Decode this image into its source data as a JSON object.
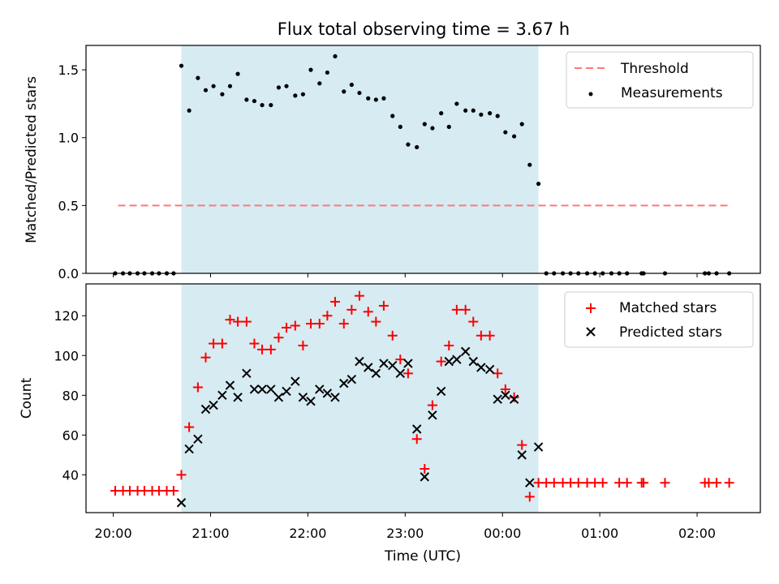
{
  "chart_data": [
    {
      "type": "scatter",
      "title": "Flux total observing time = 3.67 h",
      "xlabel": "",
      "ylabel": "Matched/Predicted stars",
      "ylim": [
        0,
        1.68
      ],
      "yticks": [
        "0.0",
        "0.5",
        "1.0",
        "1.5"
      ],
      "xlim": [
        -0.28,
        6.65
      ],
      "shaded_region": {
        "x_start": 0.7,
        "x_end": 4.37,
        "color": "#add8e6"
      },
      "threshold": {
        "name": "Threshold",
        "value": 0.5,
        "x_start": 0.05,
        "x_end": 6.35,
        "color": "#ff6666"
      },
      "legend": {
        "position": "top-right",
        "entries": [
          "Threshold",
          "Measurements"
        ]
      },
      "series": [
        {
          "name": "Measurements",
          "color": "#000000",
          "points": [
            [
              0.02,
              0
            ],
            [
              0.1,
              0
            ],
            [
              0.17,
              0
            ],
            [
              0.25,
              0
            ],
            [
              0.32,
              0
            ],
            [
              0.4,
              0
            ],
            [
              0.47,
              0
            ],
            [
              0.55,
              0
            ],
            [
              0.62,
              0
            ],
            [
              0.7,
              1.53
            ],
            [
              0.78,
              1.2
            ],
            [
              0.87,
              1.44
            ],
            [
              0.95,
              1.35
            ],
            [
              1.03,
              1.38
            ],
            [
              1.12,
              1.32
            ],
            [
              1.2,
              1.38
            ],
            [
              1.28,
              1.47
            ],
            [
              1.37,
              1.28
            ],
            [
              1.45,
              1.27
            ],
            [
              1.53,
              1.24
            ],
            [
              1.62,
              1.24
            ],
            [
              1.7,
              1.37
            ],
            [
              1.78,
              1.38
            ],
            [
              1.87,
              1.31
            ],
            [
              1.95,
              1.32
            ],
            [
              2.03,
              1.5
            ],
            [
              2.12,
              1.4
            ],
            [
              2.2,
              1.48
            ],
            [
              2.28,
              1.6
            ],
            [
              2.37,
              1.34
            ],
            [
              2.45,
              1.39
            ],
            [
              2.53,
              1.33
            ],
            [
              2.62,
              1.29
            ],
            [
              2.7,
              1.28
            ],
            [
              2.78,
              1.29
            ],
            [
              2.87,
              1.16
            ],
            [
              2.95,
              1.08
            ],
            [
              3.03,
              0.95
            ],
            [
              3.12,
              0.93
            ],
            [
              3.2,
              1.1
            ],
            [
              3.28,
              1.07
            ],
            [
              3.37,
              1.18
            ],
            [
              3.45,
              1.08
            ],
            [
              3.53,
              1.25
            ],
            [
              3.62,
              1.2
            ],
            [
              3.7,
              1.2
            ],
            [
              3.78,
              1.17
            ],
            [
              3.87,
              1.18
            ],
            [
              3.95,
              1.16
            ],
            [
              4.03,
              1.04
            ],
            [
              4.12,
              1.01
            ],
            [
              4.2,
              1.1
            ],
            [
              4.28,
              0.8
            ],
            [
              4.37,
              0.66
            ],
            [
              4.45,
              0
            ],
            [
              4.53,
              0
            ],
            [
              4.62,
              0
            ],
            [
              4.7,
              0
            ],
            [
              4.78,
              0
            ],
            [
              4.87,
              0
            ],
            [
              4.95,
              0
            ],
            [
              5.03,
              0
            ],
            [
              5.12,
              0
            ],
            [
              5.2,
              0
            ],
            [
              5.28,
              0
            ],
            [
              5.43,
              0
            ],
            [
              5.45,
              0
            ],
            [
              5.67,
              0
            ],
            [
              6.08,
              0
            ],
            [
              6.12,
              0
            ],
            [
              6.2,
              0
            ],
            [
              6.33,
              0
            ]
          ]
        }
      ]
    },
    {
      "type": "scatter",
      "title": "",
      "xlabel": "Time (UTC)",
      "ylabel": "Count",
      "ylim": [
        21,
        136
      ],
      "yticks": [
        "40",
        "60",
        "80",
        "100",
        "120"
      ],
      "xlim": [
        -0.28,
        6.65
      ],
      "xticks": [
        "20:00",
        "21:00",
        "22:00",
        "23:00",
        "00:00",
        "01:00",
        "02:00"
      ],
      "shaded_region": {
        "x_start": 0.7,
        "x_end": 4.37,
        "color": "#add8e6"
      },
      "legend": {
        "position": "top-right",
        "entries": [
          "Matched stars",
          "Predicted stars"
        ]
      },
      "series": [
        {
          "name": "Matched stars",
          "marker": "plus",
          "color": "#ff0000",
          "points": [
            [
              0.02,
              32
            ],
            [
              0.1,
              32
            ],
            [
              0.17,
              32
            ],
            [
              0.25,
              32
            ],
            [
              0.32,
              32
            ],
            [
              0.4,
              32
            ],
            [
              0.47,
              32
            ],
            [
              0.55,
              32
            ],
            [
              0.62,
              32
            ],
            [
              0.7,
              40
            ],
            [
              0.78,
              64
            ],
            [
              0.87,
              84
            ],
            [
              0.95,
              99
            ],
            [
              1.03,
              106
            ],
            [
              1.12,
              106
            ],
            [
              1.2,
              118
            ],
            [
              1.28,
              117
            ],
            [
              1.37,
              117
            ],
            [
              1.45,
              106
            ],
            [
              1.53,
              103
            ],
            [
              1.62,
              103
            ],
            [
              1.7,
              109
            ],
            [
              1.78,
              114
            ],
            [
              1.87,
              115
            ],
            [
              1.95,
              105
            ],
            [
              2.03,
              116
            ],
            [
              2.12,
              116
            ],
            [
              2.2,
              120
            ],
            [
              2.28,
              127
            ],
            [
              2.37,
              116
            ],
            [
              2.45,
              123
            ],
            [
              2.53,
              130
            ],
            [
              2.62,
              122
            ],
            [
              2.7,
              117
            ],
            [
              2.78,
              125
            ],
            [
              2.87,
              110
            ],
            [
              2.95,
              98
            ],
            [
              3.03,
              91
            ],
            [
              3.12,
              58
            ],
            [
              3.2,
              43
            ],
            [
              3.28,
              75
            ],
            [
              3.37,
              97
            ],
            [
              3.45,
              105
            ],
            [
              3.53,
              123
            ],
            [
              3.62,
              123
            ],
            [
              3.7,
              117
            ],
            [
              3.78,
              110
            ],
            [
              3.87,
              110
            ],
            [
              3.95,
              91
            ],
            [
              4.03,
              83
            ],
            [
              4.12,
              79
            ],
            [
              4.2,
              55
            ],
            [
              4.28,
              29
            ],
            [
              4.37,
              36
            ],
            [
              4.45,
              36
            ],
            [
              4.53,
              36
            ],
            [
              4.62,
              36
            ],
            [
              4.7,
              36
            ],
            [
              4.78,
              36
            ],
            [
              4.87,
              36
            ],
            [
              4.95,
              36
            ],
            [
              5.03,
              36
            ],
            [
              5.2,
              36
            ],
            [
              5.28,
              36
            ],
            [
              5.43,
              36
            ],
            [
              5.45,
              36
            ],
            [
              5.67,
              36
            ],
            [
              6.08,
              36
            ],
            [
              6.12,
              36
            ],
            [
              6.2,
              36
            ],
            [
              6.33,
              36
            ]
          ]
        },
        {
          "name": "Predicted stars",
          "marker": "x",
          "color": "#000000",
          "points": [
            [
              0.7,
              26
            ],
            [
              0.78,
              53
            ],
            [
              0.87,
              58
            ],
            [
              0.95,
              73
            ],
            [
              1.03,
              75
            ],
            [
              1.12,
              80
            ],
            [
              1.2,
              85
            ],
            [
              1.28,
              79
            ],
            [
              1.37,
              91
            ],
            [
              1.45,
              83
            ],
            [
              1.53,
              83
            ],
            [
              1.62,
              83
            ],
            [
              1.7,
              79
            ],
            [
              1.78,
              82
            ],
            [
              1.87,
              87
            ],
            [
              1.95,
              79
            ],
            [
              2.03,
              77
            ],
            [
              2.12,
              83
            ],
            [
              2.2,
              81
            ],
            [
              2.28,
              79
            ],
            [
              2.37,
              86
            ],
            [
              2.45,
              88
            ],
            [
              2.53,
              97
            ],
            [
              2.62,
              94
            ],
            [
              2.7,
              91
            ],
            [
              2.78,
              96
            ],
            [
              2.87,
              95
            ],
            [
              2.95,
              91
            ],
            [
              3.03,
              96
            ],
            [
              3.12,
              63
            ],
            [
              3.2,
              39
            ],
            [
              3.28,
              70
            ],
            [
              3.37,
              82
            ],
            [
              3.45,
              97
            ],
            [
              3.53,
              98
            ],
            [
              3.62,
              102
            ],
            [
              3.7,
              97
            ],
            [
              3.78,
              94
            ],
            [
              3.87,
              93
            ],
            [
              3.95,
              78
            ],
            [
              4.03,
              80
            ],
            [
              4.12,
              78
            ],
            [
              4.2,
              50
            ],
            [
              4.28,
              36
            ],
            [
              4.37,
              54
            ]
          ]
        }
      ]
    }
  ]
}
